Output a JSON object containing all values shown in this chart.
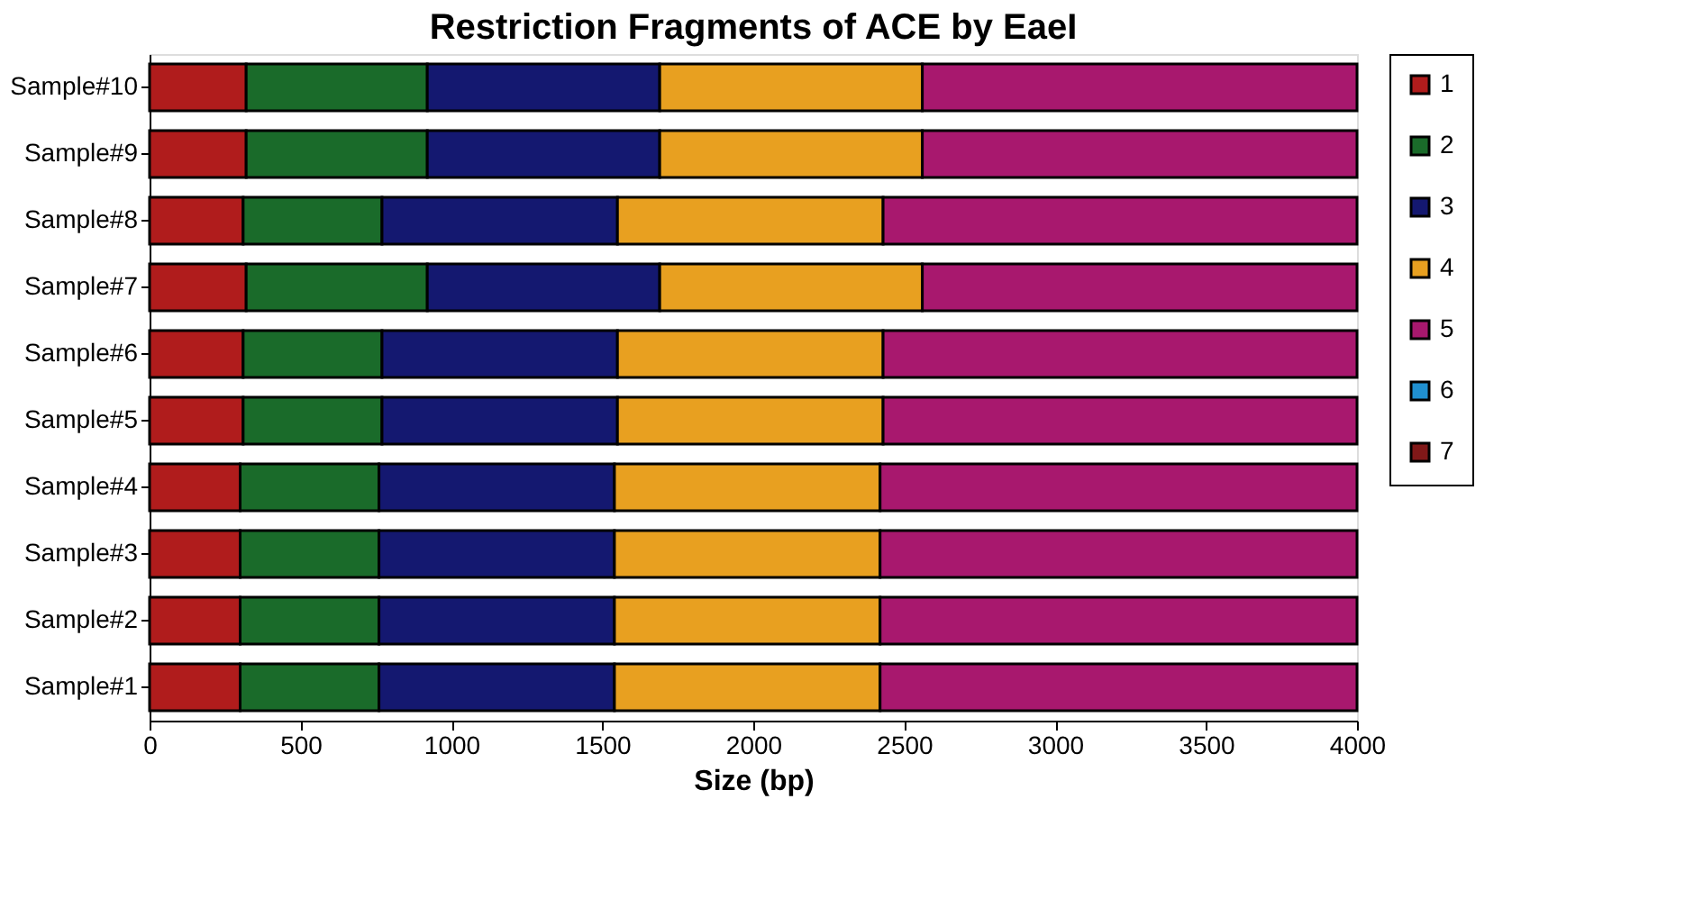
{
  "chart_data": {
    "type": "bar",
    "orientation": "horizontal",
    "stacked": true,
    "title": "Restriction Fragments of ACE by EaeI",
    "xlabel": "Size (bp)",
    "categories": [
      "Sample#10",
      "Sample#9",
      "Sample#8",
      "Sample#7",
      "Sample#6",
      "Sample#5",
      "Sample#4",
      "Sample#3",
      "Sample#2",
      "Sample#1"
    ],
    "series": [
      {
        "name": "1",
        "color": "#b01c1c",
        "values": [
          320,
          320,
          310,
          320,
          310,
          310,
          300,
          300,
          300,
          300
        ]
      },
      {
        "name": "2",
        "color": "#1a6b2a",
        "values": [
          600,
          600,
          460,
          600,
          460,
          460,
          460,
          460,
          460,
          460
        ]
      },
      {
        "name": "3",
        "color": "#141870",
        "values": [
          770,
          770,
          780,
          770,
          780,
          780,
          780,
          780,
          780,
          780
        ]
      },
      {
        "name": "4",
        "color": "#e8a020",
        "values": [
          870,
          870,
          880,
          870,
          880,
          880,
          880,
          880,
          880,
          880
        ]
      },
      {
        "name": "5",
        "color": "#a8186e",
        "values": [
          1440,
          1440,
          1570,
          1440,
          1570,
          1570,
          1580,
          1580,
          1580,
          1580
        ]
      },
      {
        "name": "6",
        "color": "#2090d0",
        "values": [
          null,
          null,
          null,
          null,
          null,
          null,
          null,
          null,
          null,
          null
        ]
      },
      {
        "name": "7",
        "color": "#801818",
        "values": [
          null,
          null,
          null,
          null,
          null,
          null,
          null,
          null,
          null,
          null
        ]
      }
    ],
    "xlim": [
      0,
      4000
    ],
    "xticks": [
      0,
      500,
      1000,
      1500,
      2000,
      2500,
      3000,
      3500,
      4000
    ],
    "grid": false,
    "legend": "right"
  }
}
